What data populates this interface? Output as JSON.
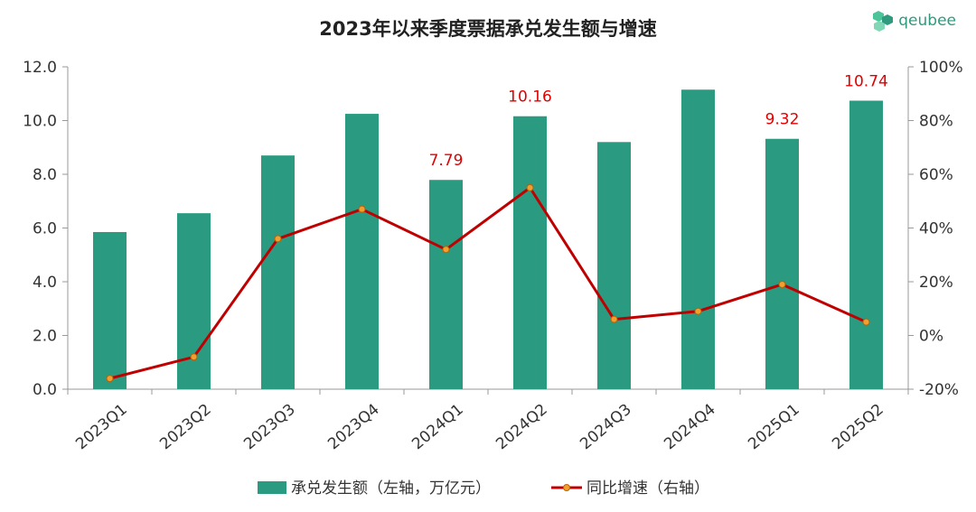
{
  "chart_data": {
    "type": "bar",
    "title": "2023年以来季度票据承兑发生额与增速",
    "categories": [
      "2023Q1",
      "2023Q2",
      "2023Q3",
      "2023Q4",
      "2024Q1",
      "2024Q2",
      "2024Q3",
      "2024Q4",
      "2025Q1",
      "2025Q2"
    ],
    "series": [
      {
        "name": "承兑发生额（左轴，万亿元）",
        "type": "bar",
        "axis": "left",
        "values": [
          5.85,
          6.55,
          8.7,
          10.25,
          7.79,
          10.16,
          9.2,
          11.15,
          9.32,
          10.74
        ],
        "color": "#2a9a80"
      },
      {
        "name": "同比增速（右轴）",
        "type": "line",
        "axis": "right",
        "values": [
          -16,
          -8,
          36,
          47,
          32,
          55,
          6,
          9,
          19,
          5
        ],
        "color": "#c00000",
        "marker_color": "#f0a030"
      }
    ],
    "data_labels": [
      {
        "index": 4,
        "text": "7.79"
      },
      {
        "index": 5,
        "text": "10.16"
      },
      {
        "index": 8,
        "text": "9.32"
      },
      {
        "index": 9,
        "text": "10.74"
      }
    ],
    "y_left": {
      "min": 0,
      "max": 12,
      "ticks": [
        "0.0",
        "2.0",
        "4.0",
        "6.0",
        "8.0",
        "10.0",
        "12.0"
      ]
    },
    "y_right": {
      "min": -20,
      "max": 100,
      "ticks": [
        "-20%",
        "0%",
        "20%",
        "40%",
        "60%",
        "80%",
        "100%"
      ]
    },
    "grid": false,
    "legend_position": "bottom"
  },
  "brand": {
    "name": "qeubee"
  }
}
